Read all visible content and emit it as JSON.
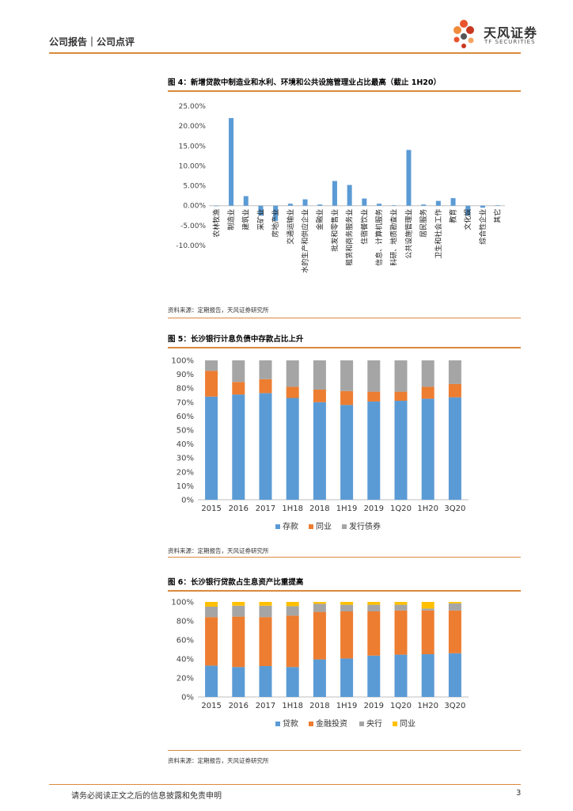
{
  "header": {
    "left": "公司报告｜公司点评"
  },
  "logo": {
    "cn": "天风证券",
    "en": "TF SECURITIES"
  },
  "colors": {
    "accent": "#d98a3c",
    "blue": "#5b9bd5",
    "orange": "#ed7d31",
    "gray": "#a5a5a5",
    "yellow": "#ffc000"
  },
  "figures": [
    {
      "title": "图 4：新增贷款中制造业和水利、环境和公共设施管理业占比最高（截止 1H20）",
      "source": "资料来源：定期报告，天风证券研究所"
    },
    {
      "title": "图 5：长沙银行计息负债中存款占比上升",
      "source": "资料来源：定期报告，天风证券研究所"
    },
    {
      "title": "图 6：长沙银行贷款占生息资产比重提高",
      "source": "资料来源：定期报告，天风证券研究所"
    }
  ],
  "chart_data": [
    {
      "type": "bar",
      "categories": [
        "农林牧渔",
        "制造业",
        "建筑业",
        "采矿业",
        "房地产业",
        "交通运输业",
        "水的生产和供应企业",
        "金融业",
        "批发和零售业",
        "租赁和商务服务业",
        "住宿餐饮业",
        "信息、计算机服务",
        "科研、地质勘查业",
        "公共设施管理业",
        "居民服务",
        "卫生和社会工作",
        "教育",
        "文化娱",
        "综合性企业",
        "其它"
      ],
      "values": [
        0.0,
        22.0,
        2.4,
        -2.5,
        -3.8,
        0.5,
        1.6,
        0.3,
        6.2,
        5.2,
        1.8,
        0.5,
        0.1,
        14.0,
        0.3,
        1.2,
        1.9,
        -2.5,
        -0.5,
        0.1
      ],
      "ylim": [
        -10,
        25
      ],
      "yticks": [
        "-10.00%",
        "-5.00%",
        "0.00%",
        "5.00%",
        "10.00%",
        "15.00%",
        "20.00%",
        "25.00%"
      ],
      "ytick_values": [
        -10,
        -5,
        0,
        5,
        10,
        15,
        20,
        25
      ],
      "title": "",
      "xlabel": "",
      "ylabel": ""
    },
    {
      "type": "bar",
      "stacked": true,
      "categories": [
        "2015",
        "2016",
        "2017",
        "1H18",
        "2018",
        "1H19",
        "2019",
        "1Q20",
        "1H20",
        "3Q20"
      ],
      "series": [
        {
          "name": "存款",
          "values": [
            74,
            75.5,
            76.5,
            73,
            70,
            68,
            70.5,
            71,
            72.5,
            73.5
          ]
        },
        {
          "name": "同业",
          "values": [
            18.5,
            9,
            10,
            8,
            9,
            10,
            7,
            6.5,
            8.5,
            9.5
          ]
        },
        {
          "name": "发行债券",
          "values": [
            7.5,
            15.5,
            13.5,
            19,
            21,
            22,
            22.5,
            22.5,
            19,
            17
          ]
        }
      ],
      "ylim": [
        0,
        100
      ],
      "yticks": [
        "0%",
        "10%",
        "20%",
        "30%",
        "40%",
        "50%",
        "60%",
        "70%",
        "80%",
        "90%",
        "100%"
      ],
      "ytick_values": [
        0,
        10,
        20,
        30,
        40,
        50,
        60,
        70,
        80,
        90,
        100
      ],
      "legend": [
        "存款",
        "同业",
        "发行债券"
      ]
    },
    {
      "type": "bar",
      "stacked": true,
      "categories": [
        "2015",
        "2016",
        "2017",
        "1H18",
        "2018",
        "1H19",
        "2019",
        "1Q20",
        "1H20",
        "3Q20"
      ],
      "series": [
        {
          "name": "贷款",
          "values": [
            33,
            31.5,
            32.5,
            31.5,
            39.5,
            40.5,
            43.5,
            44.5,
            45,
            46
          ]
        },
        {
          "name": "金融投资",
          "values": [
            51,
            53,
            51.5,
            54,
            50,
            49.5,
            46.5,
            46.5,
            46,
            45
          ]
        },
        {
          "name": "央行",
          "values": [
            11,
            11.5,
            12,
            10,
            8.5,
            7,
            7,
            6,
            2,
            7.5
          ]
        },
        {
          "name": "同业",
          "values": [
            5,
            4,
            4,
            4.5,
            2,
            3,
            3,
            3,
            7,
            1.5
          ]
        }
      ],
      "ylim": [
        0,
        100
      ],
      "yticks": [
        "0%",
        "20%",
        "40%",
        "60%",
        "80%",
        "100%"
      ],
      "ytick_values": [
        0,
        20,
        40,
        60,
        80,
        100
      ],
      "legend": [
        "贷款",
        "金融投资",
        "央行",
        "同业"
      ]
    }
  ],
  "footer": {
    "disclaimer": "请务必阅读正文之后的信息披露和免责申明",
    "page": "3"
  }
}
